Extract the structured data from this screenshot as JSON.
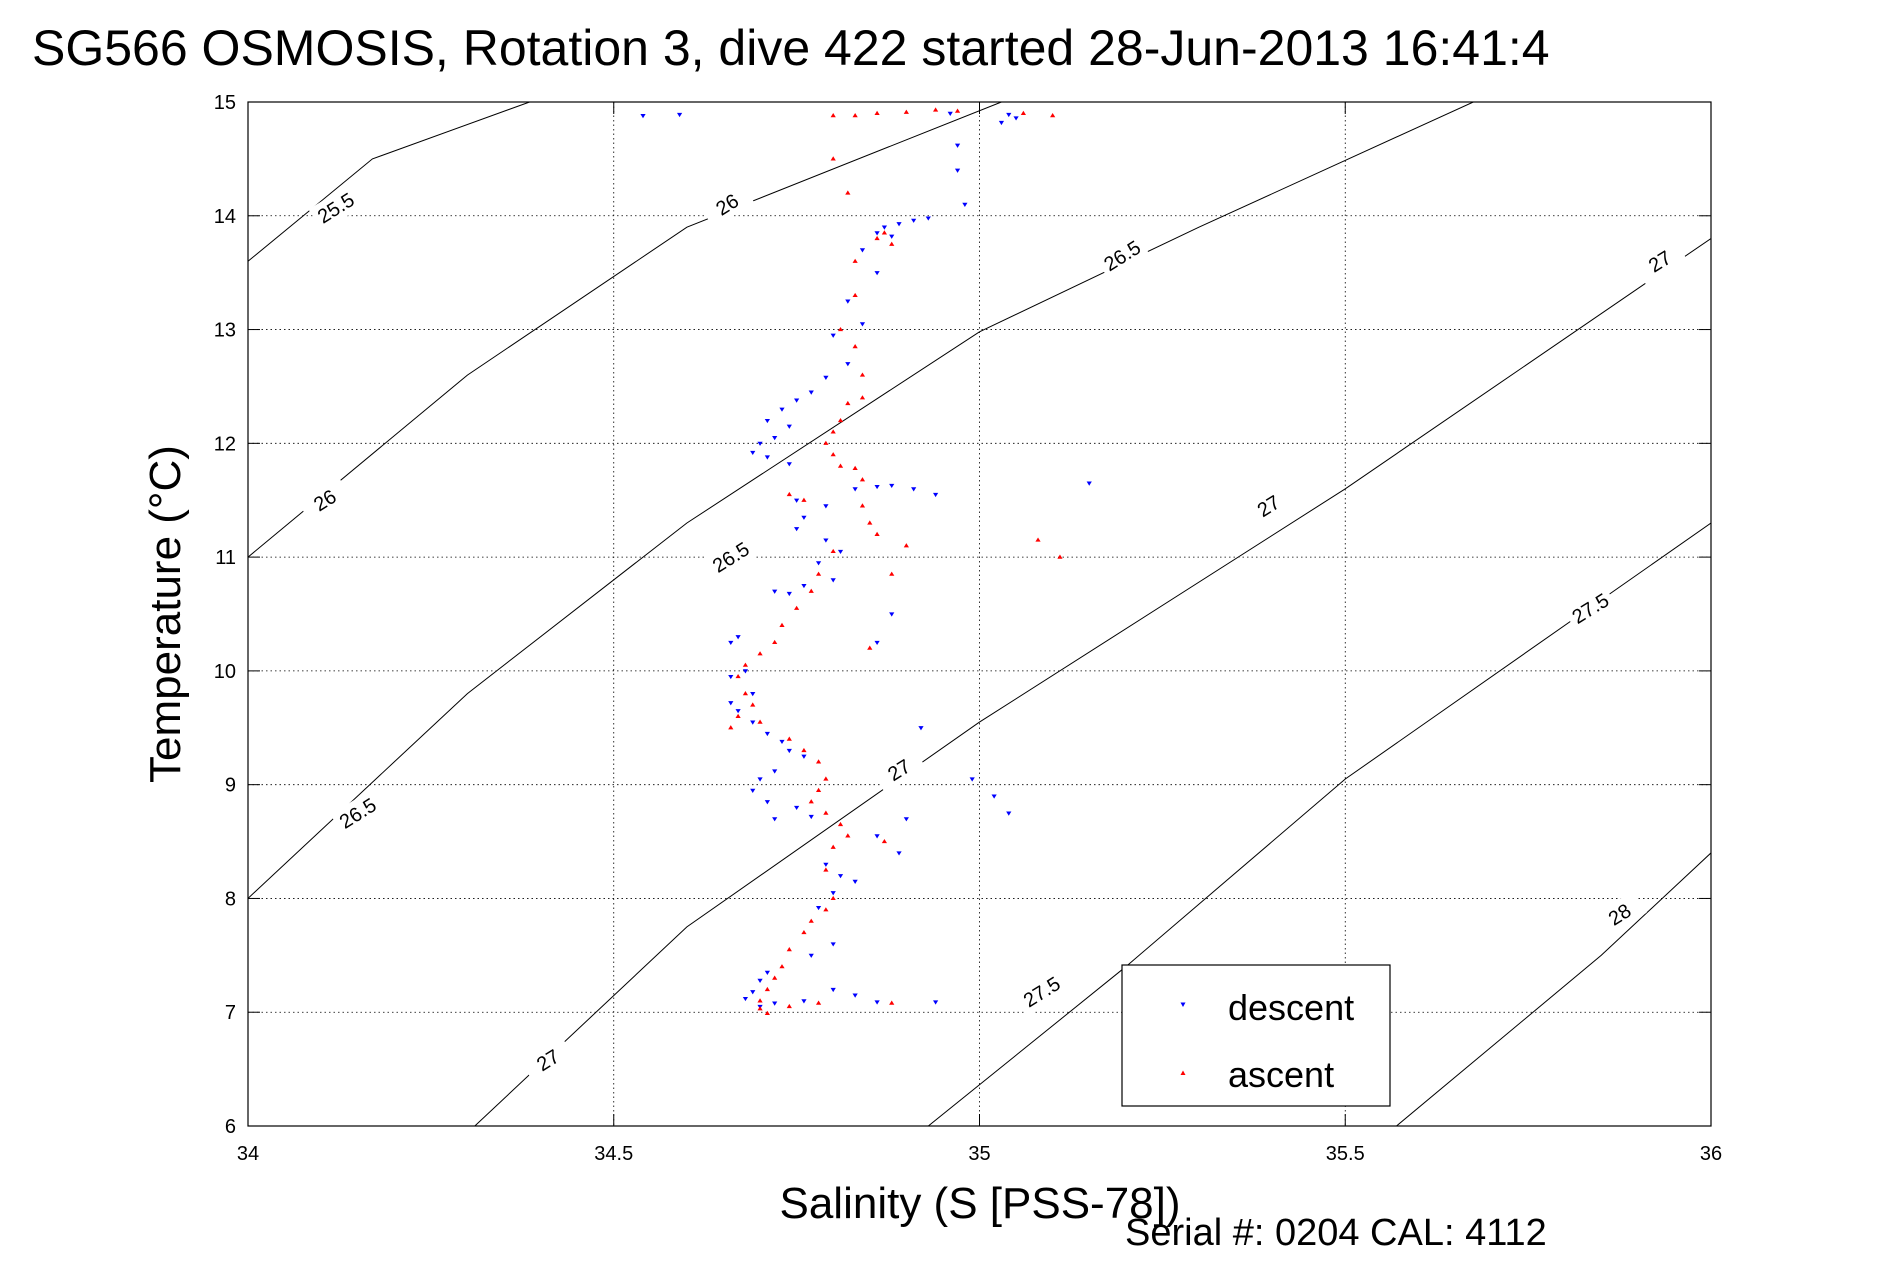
{
  "chart_data": {
    "type": "scatter",
    "title": "SG566 OSMOSIS, Rotation 3, dive 422 started 28-Jun-2013 16:41:4",
    "xlabel": "Salinity (S [PSS-78])",
    "ylabel": "Temperature (°C)",
    "xlim": [
      34,
      36
    ],
    "ylim": [
      6,
      15
    ],
    "xticks": [
      "34",
      "34.5",
      "35",
      "35.5",
      "36"
    ],
    "yticks": [
      "6",
      "7",
      "8",
      "9",
      "10",
      "11",
      "12",
      "13",
      "14",
      "15"
    ],
    "grid": true,
    "legend_position": "bottom-right",
    "footer": "Serial #: 0204  CAL: 4112",
    "series": [
      {
        "name": "descent",
        "marker": "triangle-down",
        "color": "#0000ff",
        "points": [
          [
            34.54,
            14.88
          ],
          [
            34.59,
            14.89
          ],
          [
            34.96,
            14.9
          ],
          [
            35.04,
            14.89
          ],
          [
            35.05,
            14.86
          ],
          [
            35.03,
            14.82
          ],
          [
            34.97,
            14.62
          ],
          [
            34.97,
            14.4
          ],
          [
            34.98,
            14.1
          ],
          [
            34.93,
            13.98
          ],
          [
            34.91,
            13.96
          ],
          [
            34.89,
            13.93
          ],
          [
            34.87,
            13.9
          ],
          [
            34.86,
            13.85
          ],
          [
            34.88,
            13.82
          ],
          [
            34.84,
            13.7
          ],
          [
            34.86,
            13.5
          ],
          [
            34.82,
            13.25
          ],
          [
            34.84,
            13.05
          ],
          [
            34.8,
            12.95
          ],
          [
            34.82,
            12.7
          ],
          [
            34.79,
            12.58
          ],
          [
            34.77,
            12.45
          ],
          [
            34.75,
            12.38
          ],
          [
            34.73,
            12.3
          ],
          [
            34.71,
            12.2
          ],
          [
            34.74,
            12.15
          ],
          [
            34.72,
            12.05
          ],
          [
            34.7,
            12.0
          ],
          [
            34.69,
            11.92
          ],
          [
            34.71,
            11.88
          ],
          [
            34.74,
            11.82
          ],
          [
            34.75,
            11.5
          ],
          [
            34.79,
            11.45
          ],
          [
            34.76,
            11.35
          ],
          [
            34.75,
            11.25
          ],
          [
            34.83,
            11.6
          ],
          [
            34.86,
            11.62
          ],
          [
            34.88,
            11.63
          ],
          [
            34.91,
            11.6
          ],
          [
            34.94,
            11.55
          ],
          [
            34.79,
            11.15
          ],
          [
            34.81,
            11.05
          ],
          [
            34.78,
            10.95
          ],
          [
            34.8,
            10.8
          ],
          [
            34.76,
            10.75
          ],
          [
            34.74,
            10.68
          ],
          [
            34.72,
            10.7
          ],
          [
            34.67,
            10.3
          ],
          [
            34.66,
            10.25
          ],
          [
            34.68,
            10.0
          ],
          [
            34.66,
            9.95
          ],
          [
            34.69,
            9.8
          ],
          [
            34.66,
            9.72
          ],
          [
            34.67,
            9.65
          ],
          [
            34.69,
            9.55
          ],
          [
            34.71,
            9.45
          ],
          [
            34.73,
            9.38
          ],
          [
            34.74,
            9.3
          ],
          [
            34.76,
            9.25
          ],
          [
            34.72,
            9.12
          ],
          [
            34.7,
            9.05
          ],
          [
            34.69,
            8.95
          ],
          [
            34.71,
            8.85
          ],
          [
            34.75,
            8.8
          ],
          [
            34.77,
            8.72
          ],
          [
            34.72,
            8.7
          ],
          [
            34.79,
            8.3
          ],
          [
            34.81,
            8.2
          ],
          [
            34.83,
            8.15
          ],
          [
            34.8,
            8.05
          ],
          [
            34.78,
            7.92
          ],
          [
            34.8,
            7.6
          ],
          [
            34.77,
            7.5
          ],
          [
            34.71,
            7.35
          ],
          [
            34.7,
            7.28
          ],
          [
            34.69,
            7.18
          ],
          [
            34.68,
            7.12
          ],
          [
            34.7,
            7.05
          ],
          [
            34.72,
            7.08
          ],
          [
            34.76,
            7.1
          ],
          [
            34.8,
            7.2
          ],
          [
            34.83,
            7.15
          ],
          [
            34.86,
            7.09
          ],
          [
            34.94,
            7.09
          ],
          [
            34.99,
            9.05
          ],
          [
            35.02,
            8.9
          ],
          [
            35.04,
            8.75
          ],
          [
            35.15,
            11.65
          ],
          [
            34.88,
            10.5
          ],
          [
            34.86,
            10.25
          ],
          [
            34.89,
            8.4
          ],
          [
            34.86,
            8.55
          ],
          [
            34.9,
            8.7
          ],
          [
            34.92,
            9.5
          ]
        ]
      },
      {
        "name": "ascent",
        "marker": "triangle-up",
        "color": "#ff0000",
        "points": [
          [
            34.8,
            14.88
          ],
          [
            34.83,
            14.88
          ],
          [
            34.86,
            14.9
          ],
          [
            34.9,
            14.91
          ],
          [
            34.94,
            14.93
          ],
          [
            34.97,
            14.92
          ],
          [
            35.06,
            14.9
          ],
          [
            35.1,
            14.88
          ],
          [
            34.8,
            14.5
          ],
          [
            34.82,
            14.2
          ],
          [
            34.87,
            13.85
          ],
          [
            34.86,
            13.8
          ],
          [
            34.88,
            13.75
          ],
          [
            34.83,
            13.6
          ],
          [
            34.83,
            13.3
          ],
          [
            34.81,
            13.0
          ],
          [
            34.83,
            12.85
          ],
          [
            34.84,
            12.6
          ],
          [
            34.84,
            12.4
          ],
          [
            34.82,
            12.35
          ],
          [
            34.81,
            12.2
          ],
          [
            34.8,
            12.1
          ],
          [
            34.79,
            12.0
          ],
          [
            34.8,
            11.9
          ],
          [
            34.81,
            11.8
          ],
          [
            34.83,
            11.78
          ],
          [
            34.84,
            11.68
          ],
          [
            34.84,
            11.45
          ],
          [
            34.85,
            11.3
          ],
          [
            34.86,
            11.2
          ],
          [
            34.76,
            11.5
          ],
          [
            34.74,
            11.55
          ],
          [
            34.8,
            11.05
          ],
          [
            34.78,
            10.85
          ],
          [
            34.77,
            10.7
          ],
          [
            34.75,
            10.55
          ],
          [
            34.73,
            10.4
          ],
          [
            34.72,
            10.25
          ],
          [
            34.7,
            10.15
          ],
          [
            34.68,
            10.05
          ],
          [
            34.67,
            9.95
          ],
          [
            34.68,
            9.8
          ],
          [
            34.69,
            9.7
          ],
          [
            34.67,
            9.6
          ],
          [
            34.66,
            9.5
          ],
          [
            34.7,
            9.55
          ],
          [
            34.74,
            9.4
          ],
          [
            34.76,
            9.3
          ],
          [
            34.78,
            9.2
          ],
          [
            34.79,
            9.05
          ],
          [
            34.78,
            8.95
          ],
          [
            34.77,
            8.85
          ],
          [
            34.79,
            8.75
          ],
          [
            34.81,
            8.65
          ],
          [
            34.82,
            8.55
          ],
          [
            34.8,
            8.45
          ],
          [
            34.79,
            8.25
          ],
          [
            34.8,
            8.0
          ],
          [
            34.79,
            7.9
          ],
          [
            34.77,
            7.8
          ],
          [
            34.76,
            7.7
          ],
          [
            34.74,
            7.55
          ],
          [
            34.73,
            7.4
          ],
          [
            34.72,
            7.3
          ],
          [
            34.71,
            7.2
          ],
          [
            34.7,
            7.1
          ],
          [
            34.7,
            7.03
          ],
          [
            34.71,
            6.99
          ],
          [
            34.74,
            7.05
          ],
          [
            34.78,
            7.08
          ],
          [
            34.88,
            7.08
          ],
          [
            35.08,
            11.15
          ],
          [
            35.11,
            11.0
          ],
          [
            34.85,
            10.2
          ],
          [
            34.88,
            10.85
          ],
          [
            34.9,
            11.1
          ],
          [
            34.87,
            8.5
          ]
        ]
      }
    ],
    "isopycnals": [
      {
        "value": "25.5",
        "labels": [
          "25.5"
        ]
      },
      {
        "value": "26",
        "labels": [
          "26",
          "26"
        ]
      },
      {
        "value": "26.5",
        "labels": [
          "26.5",
          "26.5",
          "26.5"
        ]
      },
      {
        "value": "27",
        "labels": [
          "27",
          "27",
          "27",
          "27"
        ]
      },
      {
        "value": "27.5",
        "labels": [
          "27.5",
          "27.5"
        ]
      },
      {
        "value": "28",
        "labels": [
          "28"
        ]
      }
    ]
  }
}
